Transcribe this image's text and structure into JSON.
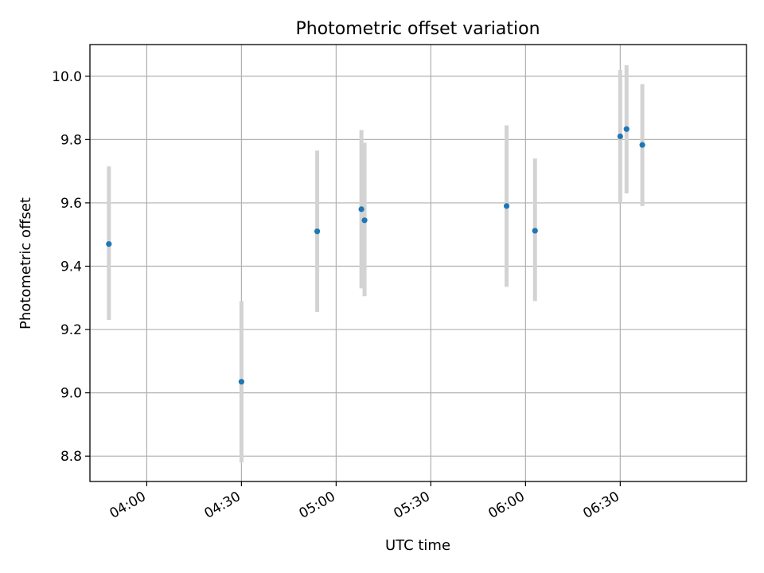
{
  "chart_data": {
    "type": "scatter",
    "title": "Photometric offset variation",
    "xlabel": "UTC time",
    "ylabel": "Photometric offset",
    "grid": true,
    "xlim": [
      "03:42",
      "07:10"
    ],
    "ylim": [
      8.72,
      10.1
    ],
    "x_ticks": [
      "04:00",
      "04:30",
      "05:00",
      "05:30",
      "06:00",
      "06:30"
    ],
    "y_ticks": [
      "8.8",
      "9.0",
      "9.2",
      "9.4",
      "9.6",
      "9.8",
      "10.0"
    ],
    "marker_color": "#1f77b4",
    "errorbar_color": "#d3d3d3",
    "points": [
      {
        "x": "03:48",
        "y": 9.47,
        "ylow": 9.23,
        "yhigh": 9.715
      },
      {
        "x": "04:30",
        "y": 9.035,
        "ylow": 8.78,
        "yhigh": 9.29
      },
      {
        "x": "04:54",
        "y": 9.51,
        "ylow": 9.255,
        "yhigh": 9.765
      },
      {
        "x": "05:08",
        "y": 9.58,
        "ylow": 9.33,
        "yhigh": 9.83
      },
      {
        "x": "05:09",
        "y": 9.545,
        "ylow": 9.305,
        "yhigh": 9.79
      },
      {
        "x": "05:54",
        "y": 9.59,
        "ylow": 9.335,
        "yhigh": 9.845
      },
      {
        "x": "06:03",
        "y": 9.512,
        "ylow": 9.29,
        "yhigh": 9.74
      },
      {
        "x": "06:30",
        "y": 9.81,
        "ylow": 9.6,
        "yhigh": 10.02
      },
      {
        "x": "06:32",
        "y": 9.833,
        "ylow": 9.63,
        "yhigh": 10.035
      },
      {
        "x": "06:37",
        "y": 9.783,
        "ylow": 9.59,
        "yhigh": 9.975
      }
    ]
  }
}
